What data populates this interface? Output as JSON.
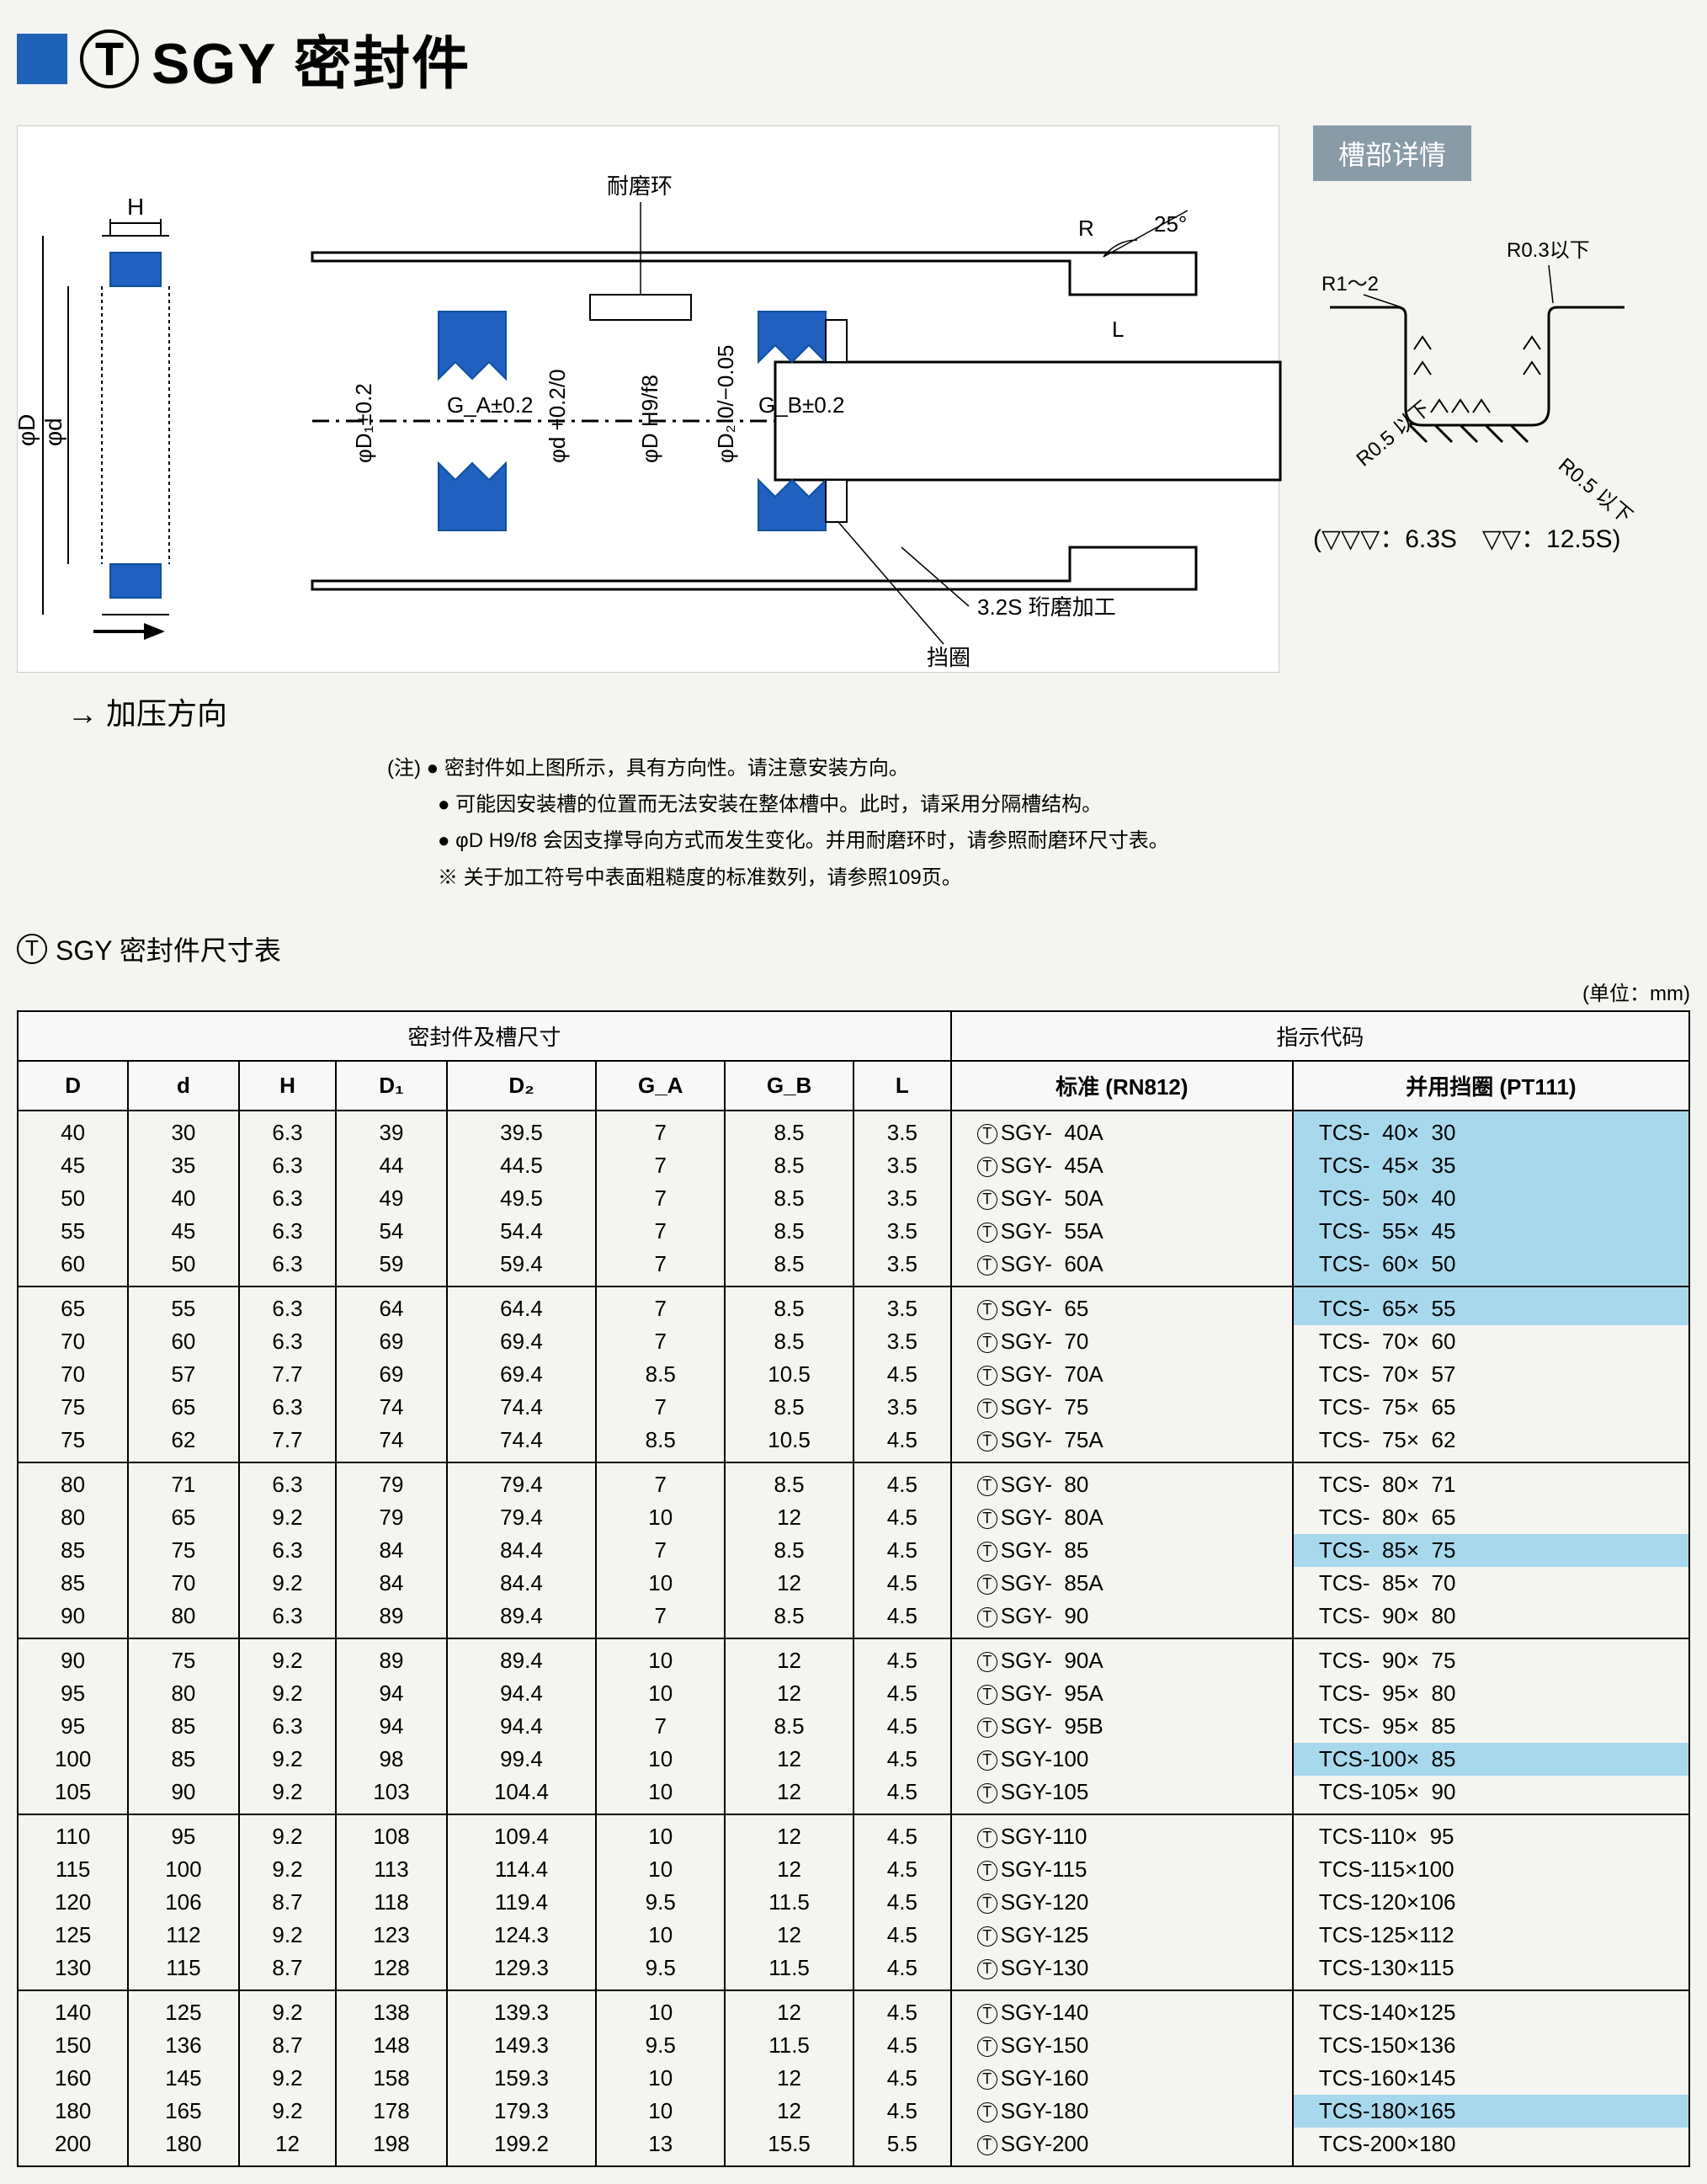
{
  "header": {
    "title_prefix": "T",
    "title_main": "SGY",
    "title_suffix": "密封件"
  },
  "diagram": {
    "top_label": "耐磨环",
    "angle_label": "25°",
    "r_label": "R",
    "l_label": "L",
    "h_label": "H",
    "phi_d_big": "φD",
    "phi_d_small": "φd",
    "phi_d1": "φD₁±0.2",
    "phi_d_plain": "φd",
    "phi_d_tol": "+0.2 0",
    "phi_d_h9": "φD H9/f8",
    "phi_d2": "φD₂",
    "phi_d2_tol": "0 −0.05",
    "ga_label": "G_A±0.2",
    "gb_label": "G_B±0.2",
    "surface_label": "3.2S 珩磨加工",
    "spacer_label": "挡圈",
    "arrow_label": "→ 加压方向"
  },
  "groove": {
    "title": "槽部详情",
    "r03": "R0.3以下",
    "r12": "R1～2",
    "r05a": "R0.5 以下",
    "r05b": "R0.5 以下",
    "legend": "(▽▽▽：6.3S　▽▽：12.5S)"
  },
  "notes": {
    "prefix": "(注) ",
    "n1": "● 密封件如上图所示，具有方向性。请注意安装方向。",
    "n2": "● 可能因安装槽的位置而无法安装在整体槽中。此时，请采用分隔槽结构。",
    "n3": "● φD H9/f8 会因支撑导向方式而发生变化。并用耐磨环时，请参照耐磨环尺寸表。",
    "n4": "※ 关于加工符号中表面粗糙度的标准数列，请参照109页。"
  },
  "table": {
    "title": "SGY 密封件尺寸表",
    "unit": "(单位：mm)",
    "headers": {
      "group1": "密封件及槽尺寸",
      "group2": "指示代码",
      "D": "D",
      "d": "d",
      "H": "H",
      "D1": "D₁",
      "D2": "D₂",
      "GA": "G_A",
      "GB": "G_B",
      "L": "L",
      "std": "标准 (RN812)",
      "spacer": "并用挡圈 (PT111)"
    },
    "groups": [
      [
        {
          "D": "40",
          "d": "30",
          "H": "6.3",
          "D1": "39",
          "D2": "39.5",
          "GA": "7",
          "GB": "8.5",
          "L": "3.5",
          "std": "SGY-  40A",
          "spc": "TCS-  40×  30",
          "hl": true
        },
        {
          "D": "45",
          "d": "35",
          "H": "6.3",
          "D1": "44",
          "D2": "44.5",
          "GA": "7",
          "GB": "8.5",
          "L": "3.5",
          "std": "SGY-  45A",
          "spc": "TCS-  45×  35",
          "hl": true
        },
        {
          "D": "50",
          "d": "40",
          "H": "6.3",
          "D1": "49",
          "D2": "49.5",
          "GA": "7",
          "GB": "8.5",
          "L": "3.5",
          "std": "SGY-  50A",
          "spc": "TCS-  50×  40",
          "hl": true
        },
        {
          "D": "55",
          "d": "45",
          "H": "6.3",
          "D1": "54",
          "D2": "54.4",
          "GA": "7",
          "GB": "8.5",
          "L": "3.5",
          "std": "SGY-  55A",
          "spc": "TCS-  55×  45",
          "hl": true
        },
        {
          "D": "60",
          "d": "50",
          "H": "6.3",
          "D1": "59",
          "D2": "59.4",
          "GA": "7",
          "GB": "8.5",
          "L": "3.5",
          "std": "SGY-  60A",
          "spc": "TCS-  60×  50",
          "hl": true
        }
      ],
      [
        {
          "D": "65",
          "d": "55",
          "H": "6.3",
          "D1": "64",
          "D2": "64.4",
          "GA": "7",
          "GB": "8.5",
          "L": "3.5",
          "std": "SGY-  65",
          "spc": "TCS-  65×  55",
          "hl": true
        },
        {
          "D": "70",
          "d": "60",
          "H": "6.3",
          "D1": "69",
          "D2": "69.4",
          "GA": "7",
          "GB": "8.5",
          "L": "3.5",
          "std": "SGY-  70",
          "spc": "TCS-  70×  60",
          "hl": false
        },
        {
          "D": "70",
          "d": "57",
          "H": "7.7",
          "D1": "69",
          "D2": "69.4",
          "GA": "8.5",
          "GB": "10.5",
          "L": "4.5",
          "std": "SGY-  70A",
          "spc": "TCS-  70×  57",
          "hl": false
        },
        {
          "D": "75",
          "d": "65",
          "H": "6.3",
          "D1": "74",
          "D2": "74.4",
          "GA": "7",
          "GB": "8.5",
          "L": "3.5",
          "std": "SGY-  75",
          "spc": "TCS-  75×  65",
          "hl": false
        },
        {
          "D": "75",
          "d": "62",
          "H": "7.7",
          "D1": "74",
          "D2": "74.4",
          "GA": "8.5",
          "GB": "10.5",
          "L": "4.5",
          "std": "SGY-  75A",
          "spc": "TCS-  75×  62",
          "hl": false
        }
      ],
      [
        {
          "D": "80",
          "d": "71",
          "H": "6.3",
          "D1": "79",
          "D2": "79.4",
          "GA": "7",
          "GB": "8.5",
          "L": "4.5",
          "std": "SGY-  80",
          "spc": "TCS-  80×  71",
          "hl": false
        },
        {
          "D": "80",
          "d": "65",
          "H": "9.2",
          "D1": "79",
          "D2": "79.4",
          "GA": "10",
          "GB": "12",
          "L": "4.5",
          "std": "SGY-  80A",
          "spc": "TCS-  80×  65",
          "hl": false
        },
        {
          "D": "85",
          "d": "75",
          "H": "6.3",
          "D1": "84",
          "D2": "84.4",
          "GA": "7",
          "GB": "8.5",
          "L": "4.5",
          "std": "SGY-  85",
          "spc": "TCS-  85×  75",
          "hl": true
        },
        {
          "D": "85",
          "d": "70",
          "H": "9.2",
          "D1": "84",
          "D2": "84.4",
          "GA": "10",
          "GB": "12",
          "L": "4.5",
          "std": "SGY-  85A",
          "spc": "TCS-  85×  70",
          "hl": false
        },
        {
          "D": "90",
          "d": "80",
          "H": "6.3",
          "D1": "89",
          "D2": "89.4",
          "GA": "7",
          "GB": "8.5",
          "L": "4.5",
          "std": "SGY-  90",
          "spc": "TCS-  90×  80",
          "hl": false
        }
      ],
      [
        {
          "D": "90",
          "d": "75",
          "H": "9.2",
          "D1": "89",
          "D2": "89.4",
          "GA": "10",
          "GB": "12",
          "L": "4.5",
          "std": "SGY-  90A",
          "spc": "TCS-  90×  75",
          "hl": false
        },
        {
          "D": "95",
          "d": "80",
          "H": "9.2",
          "D1": "94",
          "D2": "94.4",
          "GA": "10",
          "GB": "12",
          "L": "4.5",
          "std": "SGY-  95A",
          "spc": "TCS-  95×  80",
          "hl": false
        },
        {
          "D": "95",
          "d": "85",
          "H": "6.3",
          "D1": "94",
          "D2": "94.4",
          "GA": "7",
          "GB": "8.5",
          "L": "4.5",
          "std": "SGY-  95B",
          "spc": "TCS-  95×  85",
          "hl": false
        },
        {
          "D": "100",
          "d": "85",
          "H": "9.2",
          "D1": "98",
          "D2": "99.4",
          "GA": "10",
          "GB": "12",
          "L": "4.5",
          "std": "SGY-100",
          "spc": "TCS-100×  85",
          "hl": true
        },
        {
          "D": "105",
          "d": "90",
          "H": "9.2",
          "D1": "103",
          "D2": "104.4",
          "GA": "10",
          "GB": "12",
          "L": "4.5",
          "std": "SGY-105",
          "spc": "TCS-105×  90",
          "hl": false
        }
      ],
      [
        {
          "D": "110",
          "d": "95",
          "H": "9.2",
          "D1": "108",
          "D2": "109.4",
          "GA": "10",
          "GB": "12",
          "L": "4.5",
          "std": "SGY-110",
          "spc": "TCS-110×  95",
          "hl": false
        },
        {
          "D": "115",
          "d": "100",
          "H": "9.2",
          "D1": "113",
          "D2": "114.4",
          "GA": "10",
          "GB": "12",
          "L": "4.5",
          "std": "SGY-115",
          "spc": "TCS-115×100",
          "hl": false
        },
        {
          "D": "120",
          "d": "106",
          "H": "8.7",
          "D1": "118",
          "D2": "119.4",
          "GA": "9.5",
          "GB": "11.5",
          "L": "4.5",
          "std": "SGY-120",
          "spc": "TCS-120×106",
          "hl": false
        },
        {
          "D": "125",
          "d": "112",
          "H": "9.2",
          "D1": "123",
          "D2": "124.3",
          "GA": "10",
          "GB": "12",
          "L": "4.5",
          "std": "SGY-125",
          "spc": "TCS-125×112",
          "hl": false
        },
        {
          "D": "130",
          "d": "115",
          "H": "8.7",
          "D1": "128",
          "D2": "129.3",
          "GA": "9.5",
          "GB": "11.5",
          "L": "4.5",
          "std": "SGY-130",
          "spc": "TCS-130×115",
          "hl": false
        }
      ],
      [
        {
          "D": "140",
          "d": "125",
          "H": "9.2",
          "D1": "138",
          "D2": "139.3",
          "GA": "10",
          "GB": "12",
          "L": "4.5",
          "std": "SGY-140",
          "spc": "TCS-140×125",
          "hl": false
        },
        {
          "D": "150",
          "d": "136",
          "H": "8.7",
          "D1": "148",
          "D2": "149.3",
          "GA": "9.5",
          "GB": "11.5",
          "L": "4.5",
          "std": "SGY-150",
          "spc": "TCS-150×136",
          "hl": false
        },
        {
          "D": "160",
          "d": "145",
          "H": "9.2",
          "D1": "158",
          "D2": "159.3",
          "GA": "10",
          "GB": "12",
          "L": "4.5",
          "std": "SGY-160",
          "spc": "TCS-160×145",
          "hl": false
        },
        {
          "D": "180",
          "d": "165",
          "H": "9.2",
          "D1": "178",
          "D2": "179.3",
          "GA": "10",
          "GB": "12",
          "L": "4.5",
          "std": "SGY-180",
          "spc": "TCS-180×165",
          "hl": true
        },
        {
          "D": "200",
          "d": "180",
          "H": "12",
          "D1": "198",
          "D2": "199.2",
          "GA": "13",
          "GB": "15.5",
          "L": "5.5",
          "std": "SGY-200",
          "spc": "TCS-200×180",
          "hl": false
        }
      ]
    ],
    "colors": {
      "highlight": "#a8d8ec",
      "header_bg": "#f8f8f8",
      "seal_blue": "#2060c0",
      "groove_title_bg": "#8a9ba8"
    }
  }
}
